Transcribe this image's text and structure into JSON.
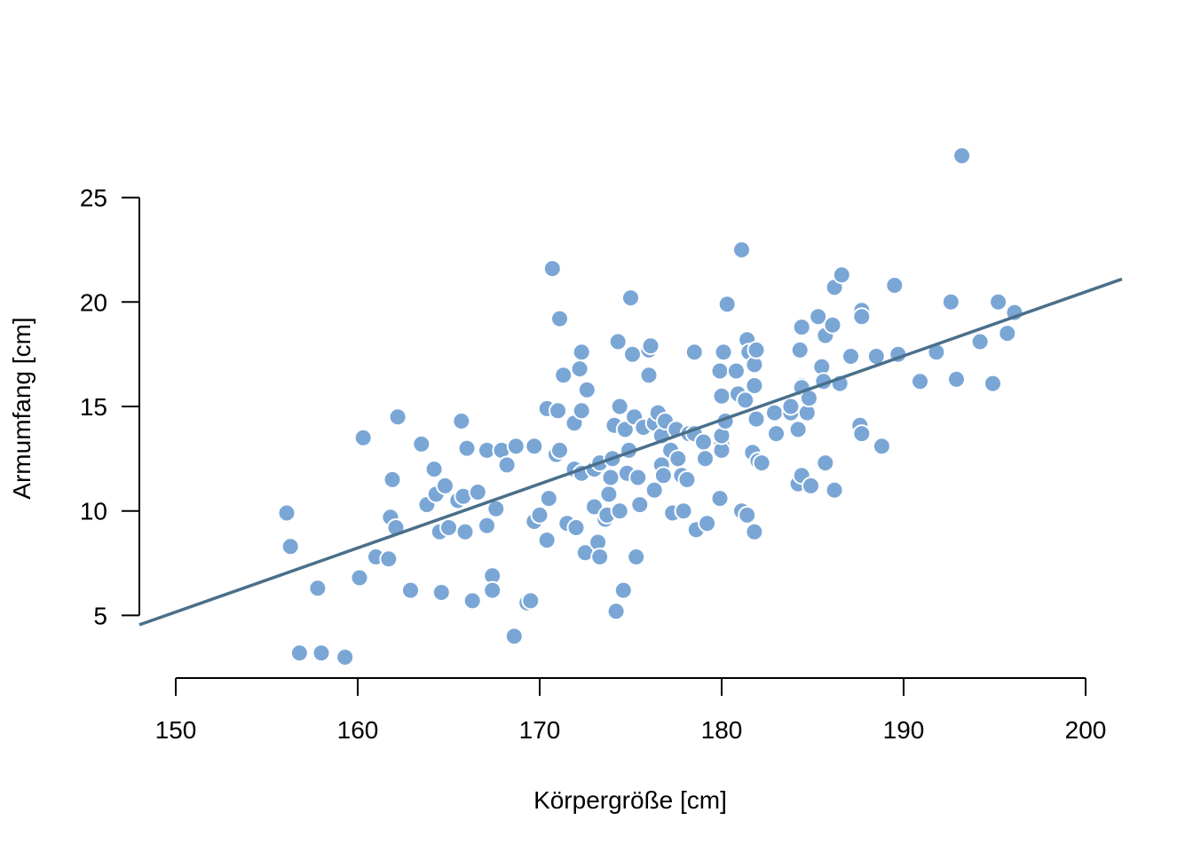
{
  "chart_data": {
    "type": "scatter",
    "title": "",
    "xlabel": "Körpergröße [cm]",
    "ylabel": "Armumfang [cm]",
    "xlim": [
      148,
      202
    ],
    "ylim": [
      2,
      28
    ],
    "x_ticks": [
      150,
      160,
      170,
      180,
      190,
      200
    ],
    "y_ticks": [
      5,
      10,
      15,
      20,
      25
    ],
    "grid": false,
    "legend": "none",
    "colors": {
      "point_fill": "#7aa6d6",
      "point_stroke": "#ffffff",
      "line": "#4a6f8a",
      "axis": "#000000"
    },
    "regression_line": {
      "x": [
        148,
        202
      ],
      "y": [
        4.55,
        21.1
      ]
    },
    "series": [
      {
        "points": [
          [
            156.1,
            9.9
          ],
          [
            156.3,
            8.3
          ],
          [
            156.8,
            3.2
          ],
          [
            157.8,
            6.3
          ],
          [
            158.0,
            3.2
          ],
          [
            159.3,
            3.0
          ],
          [
            160.1,
            6.8
          ],
          [
            160.3,
            13.5
          ],
          [
            161.0,
            7.8
          ],
          [
            161.7,
            7.7
          ],
          [
            161.8,
            9.7
          ],
          [
            161.9,
            11.5
          ],
          [
            162.1,
            9.2
          ],
          [
            162.2,
            14.5
          ],
          [
            162.9,
            6.2
          ],
          [
            163.5,
            13.2
          ],
          [
            163.8,
            10.3
          ],
          [
            164.2,
            12.0
          ],
          [
            164.3,
            10.8
          ],
          [
            164.5,
            9.0
          ],
          [
            164.6,
            6.1
          ],
          [
            164.8,
            11.2
          ],
          [
            165.0,
            9.2
          ],
          [
            165.5,
            10.5
          ],
          [
            165.7,
            14.3
          ],
          [
            165.8,
            10.7
          ],
          [
            165.9,
            9.0
          ],
          [
            166.0,
            13.0
          ],
          [
            166.3,
            5.7
          ],
          [
            166.6,
            10.9
          ],
          [
            167.1,
            12.9
          ],
          [
            167.1,
            9.3
          ],
          [
            167.4,
            6.9
          ],
          [
            167.4,
            6.2
          ],
          [
            167.6,
            10.1
          ],
          [
            167.9,
            12.9
          ],
          [
            168.2,
            12.2
          ],
          [
            168.6,
            4.0
          ],
          [
            168.7,
            13.1
          ],
          [
            169.3,
            5.6
          ],
          [
            169.5,
            5.7
          ],
          [
            169.7,
            9.5
          ],
          [
            169.7,
            13.1
          ],
          [
            170.0,
            9.8
          ],
          [
            170.4,
            14.9
          ],
          [
            170.4,
            8.6
          ],
          [
            170.5,
            10.6
          ],
          [
            170.7,
            21.6
          ],
          [
            170.9,
            12.7
          ],
          [
            171.0,
            14.8
          ],
          [
            171.1,
            12.9
          ],
          [
            171.1,
            19.2
          ],
          [
            171.3,
            16.5
          ],
          [
            171.5,
            9.4
          ],
          [
            171.9,
            12.0
          ],
          [
            171.9,
            14.2
          ],
          [
            172.0,
            9.2
          ],
          [
            172.2,
            16.8
          ],
          [
            172.3,
            11.8
          ],
          [
            172.3,
            17.6
          ],
          [
            172.3,
            14.8
          ],
          [
            172.5,
            8.0
          ],
          [
            172.6,
            15.8
          ],
          [
            173.0,
            10.2
          ],
          [
            173.0,
            12.0
          ],
          [
            173.2,
            8.5
          ],
          [
            173.3,
            12.3
          ],
          [
            173.3,
            7.8
          ],
          [
            173.6,
            9.6
          ],
          [
            173.7,
            9.8
          ],
          [
            173.8,
            10.8
          ],
          [
            173.9,
            11.6
          ],
          [
            174.0,
            12.5
          ],
          [
            174.1,
            14.1
          ],
          [
            174.2,
            5.2
          ],
          [
            174.3,
            18.1
          ],
          [
            174.4,
            15.0
          ],
          [
            174.4,
            10.0
          ],
          [
            174.6,
            6.2
          ],
          [
            174.7,
            13.9
          ],
          [
            174.8,
            11.8
          ],
          [
            174.9,
            12.9
          ],
          [
            175.0,
            20.2
          ],
          [
            175.1,
            17.5
          ],
          [
            175.2,
            14.5
          ],
          [
            175.3,
            7.8
          ],
          [
            175.4,
            11.6
          ],
          [
            175.5,
            10.3
          ],
          [
            175.7,
            14.0
          ],
          [
            176.0,
            17.7
          ],
          [
            176.0,
            16.5
          ],
          [
            176.1,
            17.9
          ],
          [
            176.3,
            11.0
          ],
          [
            176.3,
            14.2
          ],
          [
            176.5,
            14.7
          ],
          [
            176.7,
            13.6
          ],
          [
            176.7,
            12.2
          ],
          [
            176.8,
            11.7
          ],
          [
            176.9,
            14.3
          ],
          [
            177.2,
            12.9
          ],
          [
            177.3,
            9.9
          ],
          [
            177.5,
            13.9
          ],
          [
            177.6,
            12.5
          ],
          [
            177.8,
            11.7
          ],
          [
            177.9,
            10.0
          ],
          [
            178.1,
            11.5
          ],
          [
            178.2,
            13.7
          ],
          [
            178.5,
            13.7
          ],
          [
            178.5,
            17.6
          ],
          [
            178.6,
            9.1
          ],
          [
            179.0,
            13.3
          ],
          [
            179.1,
            12.5
          ],
          [
            179.2,
            9.4
          ],
          [
            179.9,
            16.7
          ],
          [
            179.9,
            10.6
          ],
          [
            180.0,
            13.2
          ],
          [
            180.0,
            12.9
          ],
          [
            180.0,
            13.6
          ],
          [
            180.0,
            15.5
          ],
          [
            180.1,
            17.6
          ],
          [
            180.2,
            14.3
          ],
          [
            180.3,
            19.9
          ],
          [
            180.8,
            16.7
          ],
          [
            180.9,
            15.6
          ],
          [
            181.1,
            10.0
          ],
          [
            181.1,
            22.5
          ],
          [
            181.3,
            15.3
          ],
          [
            181.4,
            18.2
          ],
          [
            181.4,
            9.8
          ],
          [
            181.5,
            17.6
          ],
          [
            181.7,
            12.8
          ],
          [
            181.8,
            17.0
          ],
          [
            181.8,
            9.0
          ],
          [
            181.8,
            16.0
          ],
          [
            181.9,
            17.7
          ],
          [
            181.9,
            14.4
          ],
          [
            182.0,
            12.4
          ],
          [
            182.2,
            12.3
          ],
          [
            182.9,
            14.7
          ],
          [
            183.0,
            13.7
          ],
          [
            183.8,
            14.7
          ],
          [
            183.8,
            15.0
          ],
          [
            184.2,
            13.9
          ],
          [
            184.2,
            11.3
          ],
          [
            184.3,
            17.7
          ],
          [
            184.4,
            18.8
          ],
          [
            184.4,
            16.0
          ],
          [
            184.4,
            11.7
          ],
          [
            184.4,
            15.9
          ],
          [
            184.7,
            14.7
          ],
          [
            184.8,
            15.4
          ],
          [
            184.9,
            11.2
          ],
          [
            185.3,
            19.3
          ],
          [
            185.5,
            16.9
          ],
          [
            185.6,
            16.2
          ],
          [
            185.7,
            12.3
          ],
          [
            185.7,
            18.4
          ],
          [
            186.1,
            18.9
          ],
          [
            186.2,
            11.0
          ],
          [
            186.2,
            20.7
          ],
          [
            186.5,
            16.1
          ],
          [
            186.6,
            21.3
          ],
          [
            187.1,
            17.4
          ],
          [
            187.6,
            14.1
          ],
          [
            187.7,
            13.7
          ],
          [
            187.7,
            19.6
          ],
          [
            187.7,
            19.3
          ],
          [
            188.5,
            17.4
          ],
          [
            188.8,
            13.1
          ],
          [
            189.5,
            20.8
          ],
          [
            189.7,
            17.5
          ],
          [
            190.9,
            16.2
          ],
          [
            191.8,
            17.6
          ],
          [
            192.6,
            20.0
          ],
          [
            192.9,
            16.3
          ],
          [
            193.2,
            27.0
          ],
          [
            194.2,
            18.1
          ],
          [
            194.9,
            16.1
          ],
          [
            195.2,
            20.0
          ],
          [
            195.7,
            18.5
          ],
          [
            196.1,
            19.5
          ]
        ]
      }
    ]
  }
}
